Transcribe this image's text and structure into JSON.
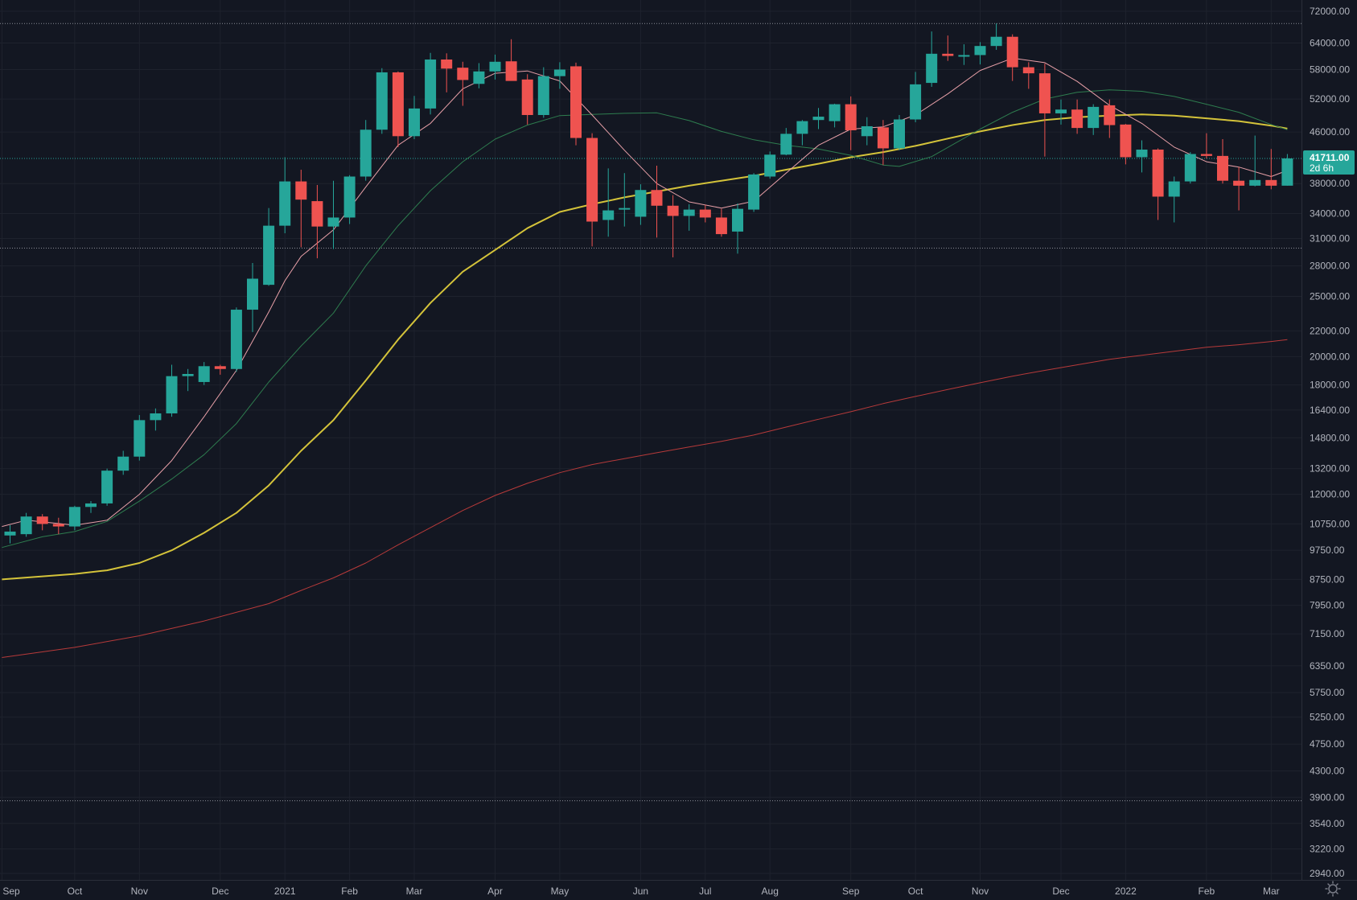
{
  "chart_data": {
    "type": "candlestick",
    "scale": "log",
    "ylim": [
      2940,
      72000
    ],
    "price_ticks": [
      "72000.00",
      "64000.00",
      "58000.00",
      "52000.00",
      "46000.00",
      "38000.00",
      "34000.00",
      "31000.00",
      "28000.00",
      "25000.00",
      "22000.00",
      "20000.00",
      "18000.00",
      "16400.00",
      "14800.00",
      "13200.00",
      "12000.00",
      "10750.00",
      "9750.00",
      "8750.00",
      "7950.00",
      "7150.00",
      "6350.00",
      "5750.00",
      "5250.00",
      "4750.00",
      "4300.00",
      "3900.00",
      "3540.00",
      "3220.00",
      "2940.00"
    ],
    "time_labels": [
      {
        "label": "Sep",
        "bar": -0.5
      },
      {
        "label": "Oct",
        "bar": 4
      },
      {
        "label": "Nov",
        "bar": 8
      },
      {
        "label": "Dec",
        "bar": 13
      },
      {
        "label": "2021",
        "bar": 17
      },
      {
        "label": "Feb",
        "bar": 21
      },
      {
        "label": "Mar",
        "bar": 25
      },
      {
        "label": "Apr",
        "bar": 30
      },
      {
        "label": "May",
        "bar": 34
      },
      {
        "label": "Jun",
        "bar": 39
      },
      {
        "label": "Jul",
        "bar": 43
      },
      {
        "label": "Aug",
        "bar": 47
      },
      {
        "label": "Sep",
        "bar": 52
      },
      {
        "label": "Oct",
        "bar": 56
      },
      {
        "label": "Nov",
        "bar": 60
      },
      {
        "label": "Dec",
        "bar": 65
      },
      {
        "label": "2022",
        "bar": 69
      },
      {
        "label": "Feb",
        "bar": 74
      },
      {
        "label": "Mar",
        "bar": 78
      }
    ],
    "last_price": "41711.00",
    "countdown": "2d 6h",
    "hlines": [
      68800,
      29900,
      3850
    ],
    "current_price": 41711,
    "colors": {
      "up": "#26a69a",
      "down": "#ef5350",
      "background": "#131722",
      "grid": "#1e222d",
      "text": "#b2b5be",
      "ma_short": "#e8a0a8",
      "ma_mid": "#2e7d4f",
      "ma_long": "#d4c33a",
      "ma_200": "#b73a3a"
    },
    "candles": [
      {
        "o": 10300,
        "h": 10700,
        "l": 10000,
        "c": 10450
      },
      {
        "o": 10350,
        "h": 11200,
        "l": 10250,
        "c": 11050
      },
      {
        "o": 11050,
        "h": 11150,
        "l": 10500,
        "c": 10750
      },
      {
        "o": 10750,
        "h": 11000,
        "l": 10350,
        "c": 10650
      },
      {
        "o": 10650,
        "h": 11500,
        "l": 10500,
        "c": 11450
      },
      {
        "o": 11450,
        "h": 11700,
        "l": 11200,
        "c": 11600
      },
      {
        "o": 11600,
        "h": 13200,
        "l": 11500,
        "c": 13100
      },
      {
        "o": 13100,
        "h": 14100,
        "l": 12900,
        "c": 13800
      },
      {
        "o": 13800,
        "h": 16100,
        "l": 13600,
        "c": 15800
      },
      {
        "o": 15800,
        "h": 16500,
        "l": 15200,
        "c": 16200
      },
      {
        "o": 16200,
        "h": 19400,
        "l": 16000,
        "c": 18600
      },
      {
        "o": 18600,
        "h": 19100,
        "l": 17600,
        "c": 18750
      },
      {
        "o": 18200,
        "h": 19600,
        "l": 18000,
        "c": 19300
      },
      {
        "o": 19300,
        "h": 19400,
        "l": 18700,
        "c": 19100
      },
      {
        "o": 19100,
        "h": 24000,
        "l": 18900,
        "c": 23800
      },
      {
        "o": 23800,
        "h": 28300,
        "l": 21900,
        "c": 26700
      },
      {
        "o": 26100,
        "h": 34700,
        "l": 26000,
        "c": 32500
      },
      {
        "o": 32500,
        "h": 41900,
        "l": 31600,
        "c": 38300
      },
      {
        "o": 38300,
        "h": 40000,
        "l": 30000,
        "c": 35800
      },
      {
        "o": 35600,
        "h": 37800,
        "l": 28800,
        "c": 32400
      },
      {
        "o": 32400,
        "h": 38400,
        "l": 29800,
        "c": 33500
      },
      {
        "o": 33500,
        "h": 39200,
        "l": 32700,
        "c": 39000
      },
      {
        "o": 39000,
        "h": 48100,
        "l": 38400,
        "c": 46400
      },
      {
        "o": 46400,
        "h": 58300,
        "l": 45700,
        "c": 57400
      },
      {
        "o": 57400,
        "h": 57600,
        "l": 43500,
        "c": 45300
      },
      {
        "o": 45300,
        "h": 52600,
        "l": 44800,
        "c": 50200
      },
      {
        "o": 50200,
        "h": 61700,
        "l": 49100,
        "c": 60200
      },
      {
        "o": 60200,
        "h": 61600,
        "l": 53300,
        "c": 58200
      },
      {
        "o": 58400,
        "h": 59700,
        "l": 50700,
        "c": 55800
      },
      {
        "o": 55000,
        "h": 59400,
        "l": 54100,
        "c": 57600
      },
      {
        "o": 57600,
        "h": 61300,
        "l": 55900,
        "c": 59700
      },
      {
        "o": 59800,
        "h": 64900,
        "l": 56000,
        "c": 55600
      },
      {
        "o": 55900,
        "h": 57000,
        "l": 47300,
        "c": 49000
      },
      {
        "o": 49000,
        "h": 58500,
        "l": 48500,
        "c": 56600
      },
      {
        "o": 56600,
        "h": 59600,
        "l": 54000,
        "c": 58000
      },
      {
        "o": 58700,
        "h": 59500,
        "l": 43800,
        "c": 45000
      },
      {
        "o": 45000,
        "h": 45800,
        "l": 30100,
        "c": 33000
      },
      {
        "o": 33200,
        "h": 40200,
        "l": 31200,
        "c": 34400
      },
      {
        "o": 34500,
        "h": 39500,
        "l": 32400,
        "c": 34700
      },
      {
        "o": 33600,
        "h": 37900,
        "l": 32600,
        "c": 37100
      },
      {
        "o": 37100,
        "h": 40600,
        "l": 31100,
        "c": 35000
      },
      {
        "o": 35000,
        "h": 36400,
        "l": 28900,
        "c": 33700
      },
      {
        "o": 33700,
        "h": 35200,
        "l": 31900,
        "c": 34500
      },
      {
        "o": 34500,
        "h": 35100,
        "l": 32900,
        "c": 33500
      },
      {
        "o": 33500,
        "h": 34600,
        "l": 31200,
        "c": 31500
      },
      {
        "o": 31800,
        "h": 35300,
        "l": 29300,
        "c": 34600
      },
      {
        "o": 34500,
        "h": 39500,
        "l": 34200,
        "c": 39300
      },
      {
        "o": 39000,
        "h": 42800,
        "l": 38700,
        "c": 42300
      },
      {
        "o": 42300,
        "h": 46700,
        "l": 42200,
        "c": 45700
      },
      {
        "o": 45700,
        "h": 48100,
        "l": 43800,
        "c": 47900
      },
      {
        "o": 48100,
        "h": 50300,
        "l": 46500,
        "c": 48700
      },
      {
        "o": 47900,
        "h": 51100,
        "l": 46800,
        "c": 51000
      },
      {
        "o": 51000,
        "h": 52500,
        "l": 43000,
        "c": 46300
      },
      {
        "o": 45300,
        "h": 48600,
        "l": 43800,
        "c": 47000
      },
      {
        "o": 46800,
        "h": 48100,
        "l": 40700,
        "c": 43300
      },
      {
        "o": 43300,
        "h": 49000,
        "l": 43000,
        "c": 48200
      },
      {
        "o": 48200,
        "h": 57500,
        "l": 47700,
        "c": 54900
      },
      {
        "o": 55200,
        "h": 66800,
        "l": 54400,
        "c": 61500
      },
      {
        "o": 61500,
        "h": 65800,
        "l": 59900,
        "c": 61000
      },
      {
        "o": 61000,
        "h": 63700,
        "l": 59000,
        "c": 61200
      },
      {
        "o": 61200,
        "h": 64200,
        "l": 59100,
        "c": 63300
      },
      {
        "o": 63300,
        "h": 68800,
        "l": 62400,
        "c": 65500
      },
      {
        "o": 65500,
        "h": 66100,
        "l": 55600,
        "c": 58500
      },
      {
        "o": 58500,
        "h": 59600,
        "l": 54000,
        "c": 57200
      },
      {
        "o": 57200,
        "h": 59300,
        "l": 42000,
        "c": 49300
      },
      {
        "o": 49300,
        "h": 51900,
        "l": 47300,
        "c": 50000
      },
      {
        "o": 50000,
        "h": 51900,
        "l": 45700,
        "c": 46700
      },
      {
        "o": 46700,
        "h": 51000,
        "l": 45500,
        "c": 50500
      },
      {
        "o": 50800,
        "h": 51900,
        "l": 45000,
        "c": 47200
      },
      {
        "o": 47300,
        "h": 47400,
        "l": 40800,
        "c": 41900
      },
      {
        "o": 41900,
        "h": 44600,
        "l": 39600,
        "c": 43100
      },
      {
        "o": 43100,
        "h": 43300,
        "l": 33200,
        "c": 36200
      },
      {
        "o": 36200,
        "h": 39000,
        "l": 32900,
        "c": 38300
      },
      {
        "o": 38300,
        "h": 42700,
        "l": 38000,
        "c": 42400
      },
      {
        "o": 42400,
        "h": 45800,
        "l": 41700,
        "c": 42100
      },
      {
        "o": 42100,
        "h": 44800,
        "l": 38000,
        "c": 38400
      },
      {
        "o": 38400,
        "h": 40400,
        "l": 34400,
        "c": 37700
      },
      {
        "o": 37700,
        "h": 45400,
        "l": 37600,
        "c": 38500
      },
      {
        "o": 38500,
        "h": 43200,
        "l": 37200,
        "c": 37700
      },
      {
        "o": 37700,
        "h": 42400,
        "l": 37700,
        "c": 41711
      }
    ],
    "ma_short": [
      {
        "i": -0.5,
        "v": 10650
      },
      {
        "i": 1,
        "v": 10900
      },
      {
        "i": 4,
        "v": 10700
      },
      {
        "i": 6,
        "v": 10900
      },
      {
        "i": 8,
        "v": 12000
      },
      {
        "i": 10,
        "v": 13600
      },
      {
        "i": 12,
        "v": 16000
      },
      {
        "i": 14,
        "v": 19000
      },
      {
        "i": 16,
        "v": 23600
      },
      {
        "i": 17,
        "v": 26500
      },
      {
        "i": 18,
        "v": 29000
      },
      {
        "i": 20,
        "v": 32000
      },
      {
        "i": 22,
        "v": 37500
      },
      {
        "i": 24,
        "v": 43800
      },
      {
        "i": 26,
        "v": 47500
      },
      {
        "i": 28,
        "v": 54000
      },
      {
        "i": 30,
        "v": 57200
      },
      {
        "i": 32,
        "v": 57700
      },
      {
        "i": 34,
        "v": 55600
      },
      {
        "i": 36,
        "v": 49000
      },
      {
        "i": 38,
        "v": 43000
      },
      {
        "i": 40,
        "v": 38000
      },
      {
        "i": 42,
        "v": 35500
      },
      {
        "i": 44,
        "v": 34700
      },
      {
        "i": 46,
        "v": 35600
      },
      {
        "i": 48,
        "v": 39500
      },
      {
        "i": 50,
        "v": 43800
      },
      {
        "i": 52,
        "v": 46500
      },
      {
        "i": 54,
        "v": 46900
      },
      {
        "i": 56,
        "v": 49000
      },
      {
        "i": 58,
        "v": 53000
      },
      {
        "i": 60,
        "v": 57800
      },
      {
        "i": 62,
        "v": 60500
      },
      {
        "i": 64,
        "v": 59500
      },
      {
        "i": 66,
        "v": 55500
      },
      {
        "i": 68,
        "v": 50800
      },
      {
        "i": 70,
        "v": 47500
      },
      {
        "i": 72,
        "v": 43500
      },
      {
        "i": 74,
        "v": 41200
      },
      {
        "i": 76,
        "v": 40400
      },
      {
        "i": 78,
        "v": 39000
      },
      {
        "i": 79,
        "v": 39900
      }
    ],
    "ma_mid": [
      {
        "i": -0.5,
        "v": 9850
      },
      {
        "i": 2,
        "v": 10250
      },
      {
        "i": 4,
        "v": 10450
      },
      {
        "i": 6,
        "v": 10850
      },
      {
        "i": 8,
        "v": 11700
      },
      {
        "i": 10,
        "v": 12700
      },
      {
        "i": 12,
        "v": 13900
      },
      {
        "i": 14,
        "v": 15600
      },
      {
        "i": 16,
        "v": 18200
      },
      {
        "i": 18,
        "v": 20800
      },
      {
        "i": 20,
        "v": 23500
      },
      {
        "i": 22,
        "v": 28000
      },
      {
        "i": 24,
        "v": 32500
      },
      {
        "i": 26,
        "v": 37000
      },
      {
        "i": 28,
        "v": 41200
      },
      {
        "i": 30,
        "v": 44800
      },
      {
        "i": 32,
        "v": 47200
      },
      {
        "i": 34,
        "v": 48900
      },
      {
        "i": 36,
        "v": 49100
      },
      {
        "i": 38,
        "v": 49300
      },
      {
        "i": 40,
        "v": 49400
      },
      {
        "i": 42,
        "v": 48000
      },
      {
        "i": 44,
        "v": 46100
      },
      {
        "i": 46,
        "v": 44700
      },
      {
        "i": 48,
        "v": 43800
      },
      {
        "i": 50,
        "v": 43200
      },
      {
        "i": 52,
        "v": 42200
      },
      {
        "i": 54,
        "v": 40700
      },
      {
        "i": 55,
        "v": 40500
      },
      {
        "i": 57,
        "v": 42000
      },
      {
        "i": 60,
        "v": 46500
      },
      {
        "i": 62,
        "v": 49500
      },
      {
        "i": 64,
        "v": 52000
      },
      {
        "i": 66,
        "v": 53300
      },
      {
        "i": 68,
        "v": 53800
      },
      {
        "i": 70,
        "v": 53500
      },
      {
        "i": 72,
        "v": 52500
      },
      {
        "i": 74,
        "v": 51000
      },
      {
        "i": 76,
        "v": 49500
      },
      {
        "i": 78,
        "v": 47300
      },
      {
        "i": 79,
        "v": 46400
      }
    ],
    "ma_long": [
      {
        "i": -0.5,
        "v": 8750
      },
      {
        "i": 2,
        "v": 8850
      },
      {
        "i": 4,
        "v": 8930
      },
      {
        "i": 6,
        "v": 9050
      },
      {
        "i": 8,
        "v": 9300
      },
      {
        "i": 10,
        "v": 9750
      },
      {
        "i": 12,
        "v": 10400
      },
      {
        "i": 14,
        "v": 11200
      },
      {
        "i": 16,
        "v": 12400
      },
      {
        "i": 18,
        "v": 14100
      },
      {
        "i": 20,
        "v": 15800
      },
      {
        "i": 22,
        "v": 18300
      },
      {
        "i": 24,
        "v": 21300
      },
      {
        "i": 26,
        "v": 24400
      },
      {
        "i": 28,
        "v": 27400
      },
      {
        "i": 30,
        "v": 29700
      },
      {
        "i": 32,
        "v": 32200
      },
      {
        "i": 34,
        "v": 34200
      },
      {
        "i": 36,
        "v": 35200
      },
      {
        "i": 38,
        "v": 36100
      },
      {
        "i": 40,
        "v": 36900
      },
      {
        "i": 42,
        "v": 37700
      },
      {
        "i": 44,
        "v": 38400
      },
      {
        "i": 46,
        "v": 39100
      },
      {
        "i": 48,
        "v": 40000
      },
      {
        "i": 50,
        "v": 40900
      },
      {
        "i": 52,
        "v": 41900
      },
      {
        "i": 54,
        "v": 42700
      },
      {
        "i": 56,
        "v": 43700
      },
      {
        "i": 58,
        "v": 44900
      },
      {
        "i": 60,
        "v": 46100
      },
      {
        "i": 62,
        "v": 47200
      },
      {
        "i": 64,
        "v": 48100
      },
      {
        "i": 66,
        "v": 48600
      },
      {
        "i": 68,
        "v": 48900
      },
      {
        "i": 70,
        "v": 49100
      },
      {
        "i": 72,
        "v": 48900
      },
      {
        "i": 74,
        "v": 48400
      },
      {
        "i": 76,
        "v": 47900
      },
      {
        "i": 78,
        "v": 47100
      },
      {
        "i": 79,
        "v": 46600
      }
    ],
    "ma_200": [
      {
        "i": -0.5,
        "v": 6550
      },
      {
        "i": 4,
        "v": 6800
      },
      {
        "i": 8,
        "v": 7100
      },
      {
        "i": 12,
        "v": 7500
      },
      {
        "i": 16,
        "v": 8000
      },
      {
        "i": 18,
        "v": 8400
      },
      {
        "i": 20,
        "v": 8800
      },
      {
        "i": 22,
        "v": 9300
      },
      {
        "i": 24,
        "v": 9950
      },
      {
        "i": 26,
        "v": 10600
      },
      {
        "i": 28,
        "v": 11300
      },
      {
        "i": 30,
        "v": 11950
      },
      {
        "i": 32,
        "v": 12500
      },
      {
        "i": 34,
        "v": 13000
      },
      {
        "i": 36,
        "v": 13400
      },
      {
        "i": 38,
        "v": 13700
      },
      {
        "i": 40,
        "v": 14000
      },
      {
        "i": 42,
        "v": 14300
      },
      {
        "i": 44,
        "v": 14600
      },
      {
        "i": 46,
        "v": 14950
      },
      {
        "i": 48,
        "v": 15400
      },
      {
        "i": 50,
        "v": 15850
      },
      {
        "i": 52,
        "v": 16300
      },
      {
        "i": 54,
        "v": 16800
      },
      {
        "i": 56,
        "v": 17250
      },
      {
        "i": 58,
        "v": 17700
      },
      {
        "i": 60,
        "v": 18150
      },
      {
        "i": 62,
        "v": 18600
      },
      {
        "i": 64,
        "v": 19000
      },
      {
        "i": 66,
        "v": 19400
      },
      {
        "i": 68,
        "v": 19800
      },
      {
        "i": 70,
        "v": 20100
      },
      {
        "i": 72,
        "v": 20400
      },
      {
        "i": 74,
        "v": 20700
      },
      {
        "i": 76,
        "v": 20900
      },
      {
        "i": 78,
        "v": 21150
      },
      {
        "i": 79,
        "v": 21300
      }
    ]
  }
}
